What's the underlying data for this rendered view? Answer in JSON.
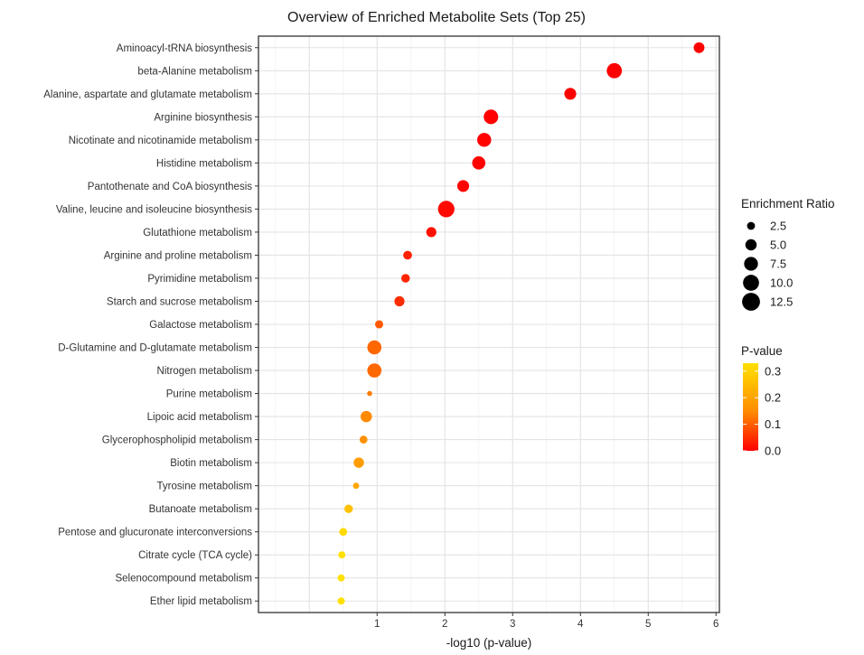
{
  "chart_data": {
    "type": "scatter",
    "title": "Overview of Enriched Metabolite Sets (Top 25)",
    "xlabel": "-log10 (p-value)",
    "ylabel": "",
    "xlim": [
      -0.75,
      6.05
    ],
    "xticks": [
      1,
      2,
      3,
      4,
      5,
      6
    ],
    "grid": true,
    "points": [
      {
        "name": "Aminoacyl-tRNA biosynthesis",
        "x": 5.75,
        "ratio": 4.5,
        "p": 0.0
      },
      {
        "name": "beta-Alanine metabolism",
        "x": 4.5,
        "ratio": 9.0,
        "p": 0.0
      },
      {
        "name": "Alanine, aspartate and glutamate metabolism",
        "x": 3.85,
        "ratio": 5.5,
        "p": 0.0
      },
      {
        "name": "Arginine biosynthesis",
        "x": 2.68,
        "ratio": 8.2,
        "p": 0.002
      },
      {
        "name": "Nicotinate and nicotinamide metabolism",
        "x": 2.58,
        "ratio": 7.6,
        "p": 0.003
      },
      {
        "name": "Histidine metabolism",
        "x": 2.5,
        "ratio": 6.8,
        "p": 0.003
      },
      {
        "name": "Pantothenate and CoA biosynthesis",
        "x": 2.27,
        "ratio": 5.5,
        "p": 0.005
      },
      {
        "name": "Valine, leucine and isoleucine biosynthesis",
        "x": 2.02,
        "ratio": 10.6,
        "p": 0.01
      },
      {
        "name": "Glutathione metabolism",
        "x": 1.8,
        "ratio": 4.0,
        "p": 0.016
      },
      {
        "name": "Arginine and proline metabolism",
        "x": 1.45,
        "ratio": 3.0,
        "p": 0.035
      },
      {
        "name": "Pyrimidine metabolism",
        "x": 1.42,
        "ratio": 2.9,
        "p": 0.038
      },
      {
        "name": "Starch and sucrose metabolism",
        "x": 1.33,
        "ratio": 4.0,
        "p": 0.047
      },
      {
        "name": "Galactose metabolism",
        "x": 1.03,
        "ratio": 2.6,
        "p": 0.093
      },
      {
        "name": "D-Glutamine and D-glutamate metabolism",
        "x": 0.96,
        "ratio": 7.8,
        "p": 0.11
      },
      {
        "name": "Nitrogen metabolism",
        "x": 0.96,
        "ratio": 7.8,
        "p": 0.11
      },
      {
        "name": "Purine metabolism",
        "x": 0.89,
        "ratio": 1.0,
        "p": 0.129
      },
      {
        "name": "Lipoic acid metabolism",
        "x": 0.84,
        "ratio": 5.0,
        "p": 0.145
      },
      {
        "name": "Glycerophospholipid metabolism",
        "x": 0.8,
        "ratio": 2.4,
        "p": 0.158
      },
      {
        "name": "Biotin metabolism",
        "x": 0.73,
        "ratio": 4.2,
        "p": 0.186
      },
      {
        "name": "Tyrosine metabolism",
        "x": 0.69,
        "ratio": 1.5,
        "p": 0.204
      },
      {
        "name": "Butanoate metabolism",
        "x": 0.58,
        "ratio": 2.8,
        "p": 0.263
      },
      {
        "name": "Pentose and glucuronate interconversions",
        "x": 0.5,
        "ratio": 2.4,
        "p": 0.316
      },
      {
        "name": "Citrate cycle (TCA cycle)",
        "x": 0.48,
        "ratio": 2.0,
        "p": 0.331
      },
      {
        "name": "Selenocompound metabolism",
        "x": 0.47,
        "ratio": 2.0,
        "p": 0.339
      },
      {
        "name": "Ether lipid metabolism",
        "x": 0.47,
        "ratio": 2.0,
        "p": 0.339
      }
    ],
    "legend_size": {
      "title": "Enrichment Ratio",
      "values": [
        2.5,
        5.0,
        7.5,
        10.0,
        12.5
      ],
      "labels": [
        "2.5",
        "5.0",
        "7.5",
        "10.0",
        "12.5"
      ]
    },
    "legend_color": {
      "title": "P-value",
      "range": [
        0.0,
        0.33
      ],
      "ticks": [
        0.0,
        0.1,
        0.2,
        0.3
      ],
      "labels": [
        "0.0",
        "0.1",
        "0.2",
        "0.3"
      ],
      "colors": {
        "low": "#ff0000",
        "mid": "#ff8c00",
        "high": "#ffe000"
      }
    },
    "legend_placement": "right"
  }
}
